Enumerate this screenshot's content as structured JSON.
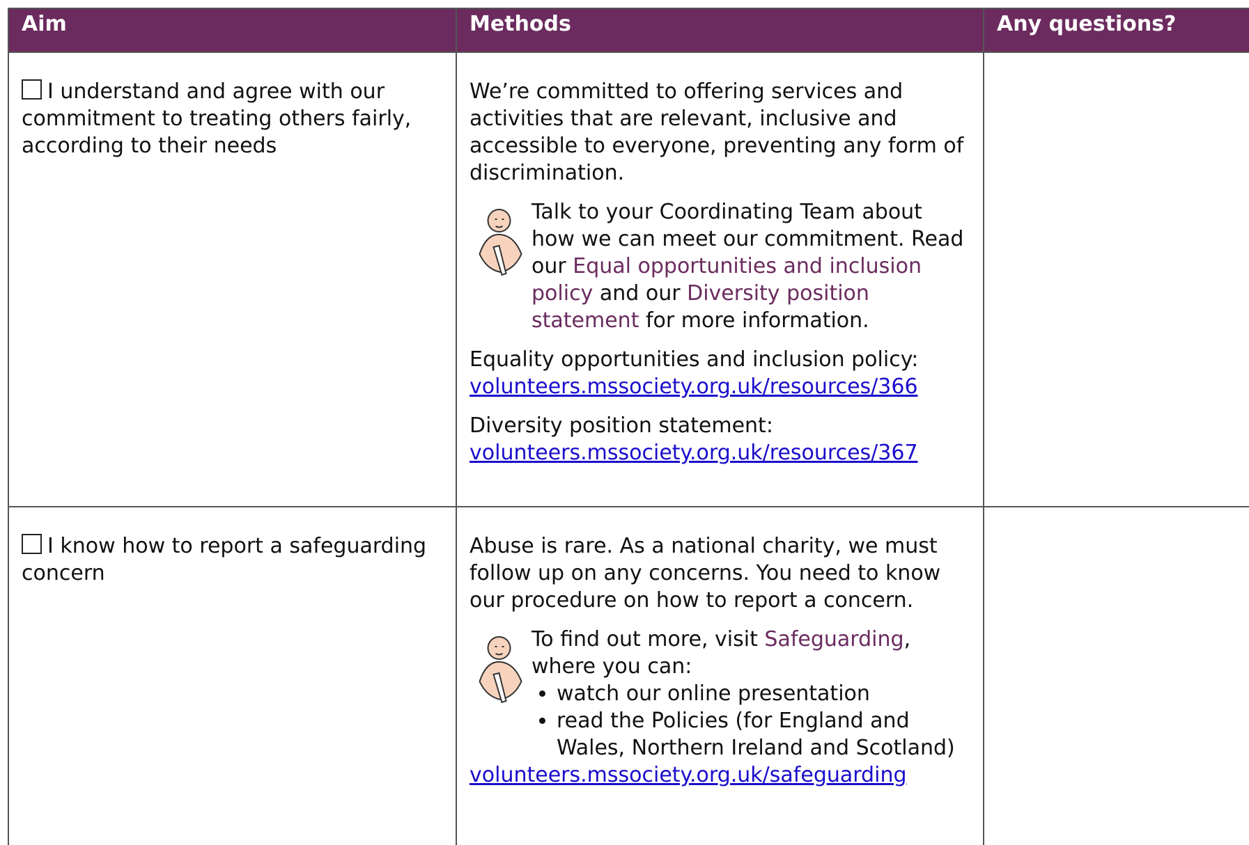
{
  "table": {
    "header": [
      "Aim",
      "Methods",
      "Any questions?"
    ],
    "rows": [
      {
        "aim": "I understand and agree with our commitment to treating others fairly, according to their needs",
        "intro": "We’re committed to offering services and activities that are relevant, inclusive and accessible to everyone, preventing any form of discrimination.",
        "tip": [
          "Talk to your Coordinating Team about how we can meet our commitment. Read our ",
          "Equal opportunities and inclusion policy",
          " and our ",
          "Diversity position statement",
          " for more information."
        ],
        "refs": [
          {
            "label": "Equality opportunities and inclusion policy:",
            "url": "volunteers.mssociety.org.uk/resources/366"
          },
          {
            "label": "Diversity position statement:",
            "url": "volunteers.mssociety.org.uk/resources/367"
          }
        ]
      },
      {
        "aim": "I know how to report a safeguarding concern",
        "intro": "Abuse is rare. As a national charity, we must follow up on any concerns. You need to know our procedure on how to report a concern.",
        "tip": [
          "To find out more, visit ",
          "Safeguarding",
          ", where you can:"
        ],
        "bullets": [
          "watch our online presentation",
          "read the Policies (for England and Wales, Northern Ireland and Scotland)"
        ],
        "url": "volunteers.mssociety.org.uk/safeguarding"
      }
    ]
  }
}
